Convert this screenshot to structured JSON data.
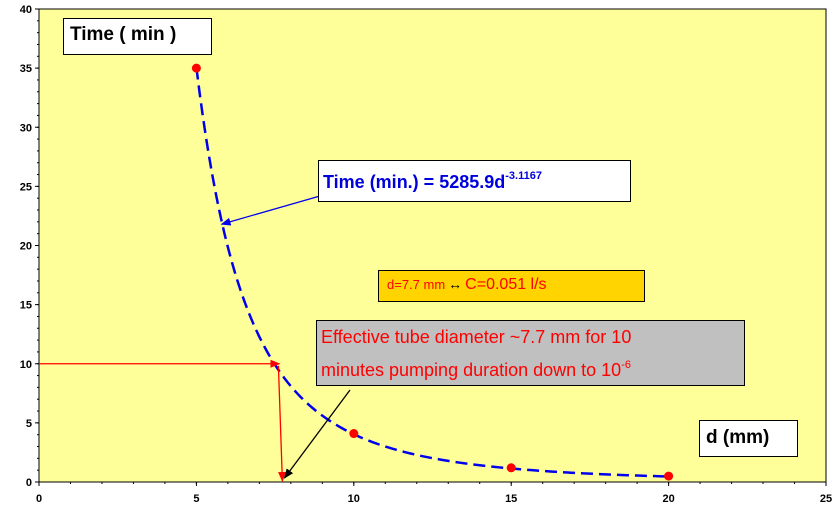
{
  "chart_data": {
    "type": "scatter",
    "xlim": [
      0,
      25
    ],
    "ylim": [
      0,
      40
    ],
    "x_ticks": [
      "0",
      "5",
      "10",
      "15",
      "20",
      "25"
    ],
    "y_ticks": [
      "0",
      "5",
      "10",
      "15",
      "20",
      "25",
      "30",
      "35",
      "40"
    ],
    "ylabel": "Time ( min )",
    "xlabel": "d (mm)",
    "points": [
      {
        "x": 5,
        "y": 35
      },
      {
        "x": 10,
        "y": 4.1
      },
      {
        "x": 15,
        "y": 1.2
      },
      {
        "x": 20,
        "y": 0.5
      }
    ],
    "fit": {
      "coefficient": 5285.9,
      "exponent": -3.1167,
      "label_prefix": "Time (min.) = 5285.9d",
      "label_exponent": "-3.1167"
    },
    "condition": {
      "left": "d=7.7 mm",
      "arrow": "↔",
      "right": "C=0.051 l/s"
    },
    "note": {
      "line1": "Effective tube diameter ~7.7 mm for 10",
      "line2_prefix": "minutes pumping duration down to 10",
      "line2_exponent": "-6"
    },
    "marker": {
      "x": 7.7,
      "y": 10
    },
    "colors": {
      "plot_background": "#ffff99",
      "points": "#ff0000",
      "fit_line": "#0000ee",
      "marker_lines": "#ff0000",
      "pointer_arrows_blue": "#0000ee",
      "pointer_arrows_black": "#000000",
      "condition_box": "#ffd400",
      "note_box": "#c0c0c0"
    },
    "grid": false,
    "legend": "none"
  }
}
